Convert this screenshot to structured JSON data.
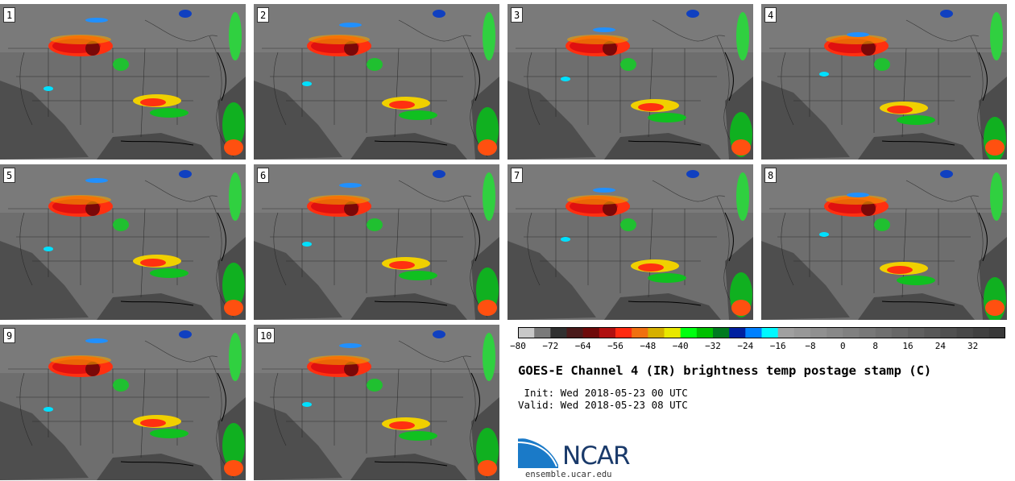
{
  "panels": [
    {
      "label": "1"
    },
    {
      "label": "2"
    },
    {
      "label": "3"
    },
    {
      "label": "4"
    },
    {
      "label": "5"
    },
    {
      "label": "6"
    },
    {
      "label": "7"
    },
    {
      "label": "8"
    },
    {
      "label": "9"
    },
    {
      "label": "10"
    }
  ],
  "colorbar": {
    "colors": [
      "#c8c8c8",
      "#7a7a7a",
      "#303030",
      "#4a1a1a",
      "#6e0a0a",
      "#b01010",
      "#ff2a10",
      "#f07010",
      "#d6b000",
      "#e8e800",
      "#00ff10",
      "#00c000",
      "#007a20",
      "#0020a0",
      "#0080ff",
      "#00f8ff",
      "#a0a0a0",
      "#989898",
      "#909090",
      "#888888",
      "#808080",
      "#787878",
      "#707070",
      "#686868",
      "#606060",
      "#585858",
      "#505050",
      "#484848",
      "#404040",
      "#383838"
    ],
    "tick_labels": [
      "−80",
      "−72",
      "−64",
      "−56",
      "−48",
      "−40",
      "−32",
      "−24",
      "−16",
      "−8",
      "0",
      "8",
      "16",
      "24",
      "32"
    ]
  },
  "title": "GOES-E Channel 4 (IR) brightness temp postage stamp (C)",
  "init": " Init: Wed 2018-05-23 00 UTC",
  "valid": "Valid: Wed 2018-05-23 08 UTC",
  "logo": {
    "text": "NCAR",
    "brand_color": "#1a3a6a",
    "swoosh_color": "#1a7ac8"
  },
  "site": "ensemble.ucar.edu"
}
